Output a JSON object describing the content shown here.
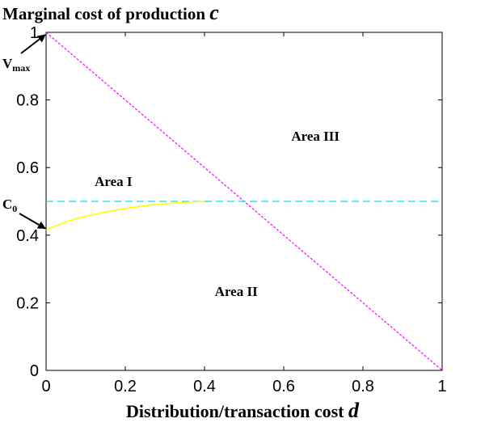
{
  "chart_data": {
    "type": "line",
    "ylabel_text": "Marginal cost of production ",
    "ylabel_var": "c",
    "xlabel_text": "Distribution/transaction cost ",
    "xlabel_var": "d",
    "xlim": [
      0,
      1
    ],
    "ylim": [
      0,
      1
    ],
    "x_ticks": [
      "0",
      "0.2",
      "0.4",
      "0.6",
      "0.8",
      "1"
    ],
    "y_ticks": [
      "0",
      "0.2",
      "0.4",
      "0.6",
      "0.8",
      "1"
    ],
    "grid": false,
    "series": [
      {
        "style": "dotted",
        "color": "#ff00ff",
        "x": [
          0,
          1
        ],
        "y": [
          1,
          0
        ]
      },
      {
        "style": "dashed",
        "color": "#00e5e5",
        "x": [
          0,
          1
        ],
        "y": [
          0.5,
          0.5
        ]
      },
      {
        "style": "solid",
        "color": "#ffff00",
        "x": [
          0,
          0.05,
          0.1,
          0.15,
          0.2,
          0.25,
          0.3,
          0.35,
          0.4
        ],
        "y": [
          0.415,
          0.44,
          0.456,
          0.469,
          0.479,
          0.487,
          0.493,
          0.497,
          0.5
        ]
      }
    ],
    "annotations": {
      "area1": {
        "label": "Area I",
        "x": 0.17,
        "y": 0.545
      },
      "area2": {
        "label": "Area II",
        "x": 0.48,
        "y": 0.22
      },
      "area3": {
        "label": "Area III",
        "x": 0.68,
        "y": 0.68
      },
      "vmax": {
        "main": "V",
        "sub": "max",
        "x": 0,
        "y": 1
      },
      "c0": {
        "main": "C",
        "sub": "0",
        "x": 0,
        "y": 0.415
      }
    }
  }
}
